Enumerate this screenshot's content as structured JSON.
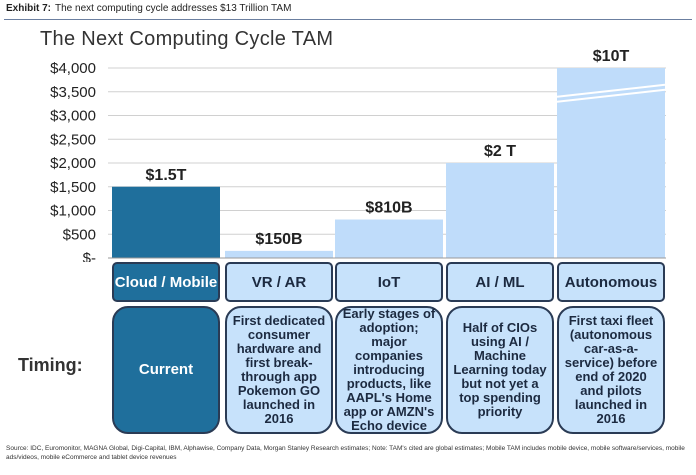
{
  "exhibit": {
    "number": "Exhibit 7:",
    "text": "The next computing cycle addresses $13 Trillion TAM"
  },
  "chart_data": {
    "type": "bar",
    "title": "The Next Computing Cycle TAM",
    "categories": [
      "Cloud / Mobile",
      "VR / AR",
      "IoT",
      "AI / ML",
      "Autonomous"
    ],
    "values": [
      1500,
      150,
      810,
      2000,
      10000
    ],
    "data_labels": [
      "$1.5T",
      "$150B",
      "$810B",
      "$2 T",
      "$10T"
    ],
    "axis_break_category": "Autonomous",
    "ylim": [
      0,
      4000
    ],
    "yticks": [
      0,
      500,
      1000,
      1500,
      2000,
      2500,
      3000,
      3500,
      4000
    ],
    "ytick_labels": [
      "$-",
      "$500",
      "$1,000",
      "$1,500",
      "$2,000",
      "$2,500",
      "$3,000",
      "$3,500",
      "$4,000"
    ],
    "grid": true,
    "colors": [
      "#1f6f9c",
      "#bfdcfa",
      "#bfdcfa",
      "#bfdcfa",
      "#bfdcfa"
    ]
  },
  "timing": {
    "label": "Timing:",
    "items": [
      "Current",
      "First dedicated consumer hardware and first break-through app Pokemon GO launched in 2016",
      "Early stages of adoption; major companies introducing products, like AAPL's Home app or AMZN's Echo device",
      "Half of CIOs using AI / Machine Learning today but not yet a top spending priority",
      "First taxi fleet (autonomous car-as-a-service) before end of 2020 and pilots launched in 2016"
    ]
  },
  "footer": "Source: IDC, Euromonitor, MAGNA Global, Digi-Capital, IBM, Alphawise, Company Data, Morgan Stanley Research estimates; Note: TAM's cited are global estimates; Mobile TAM includes mobile device, mobile software/services, mobile ads/videos, mobile eCommerce and tablet device revenues"
}
